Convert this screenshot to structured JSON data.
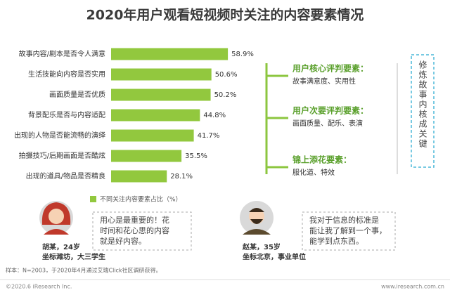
{
  "chart_data": {
    "type": "bar",
    "orientation": "horizontal",
    "title": "2020年用户观看短视频时关注的内容要素情况",
    "categories": [
      "故事内容/剧本是否令人满意",
      "生活技能向内容是否实用",
      "画面质量是否优质",
      "背景配乐是否与内容适配",
      "出现的人物是否能流畅的演绎",
      "拍摄技巧/后期画面是否酷炫",
      "出现的道具/物品是否精良"
    ],
    "series": [
      {
        "name": "不同关注内容要素占比（%）",
        "color": "#92c83e",
        "values": [
          58.9,
          50.6,
          50.2,
          44.8,
          41.7,
          35.5,
          28.1
        ],
        "value_labels": [
          "58.9%",
          "50.6%",
          "50.2%",
          "44.8%",
          "41.7%",
          "35.5%",
          "28.1%"
        ]
      }
    ]
  },
  "panel": {
    "groups": [
      {
        "title": "用户核心评判要素：",
        "detail": "故事满意度、实用性"
      },
      {
        "title": "用户次要评判要素：",
        "detail": "画面质量、配乐、表演"
      },
      {
        "title": "锦上添花要素：",
        "detail": "服化道、特效"
      }
    ],
    "conclusion": "修炼故事内核成关键"
  },
  "quotes": [
    {
      "name": "胡某，24岁",
      "info": "坐标潍坊，大三学生",
      "lines": [
        "用心是最重要的！花",
        "时间和花心思的内容",
        "就是好内容。"
      ]
    },
    {
      "name": "赵某，35岁",
      "info": "坐标北京，事业单位",
      "lines": [
        "我对于信息的标准是",
        "能让我了解到一个事，",
        "能学到点东西。"
      ]
    }
  ],
  "footer": {
    "source": "样本：N=2003，于2020年4月通过艾瑞Click社区调研获得。",
    "copyright": "©2020.6 iResearch Inc.",
    "site": "www.iresearch.com.cn"
  }
}
